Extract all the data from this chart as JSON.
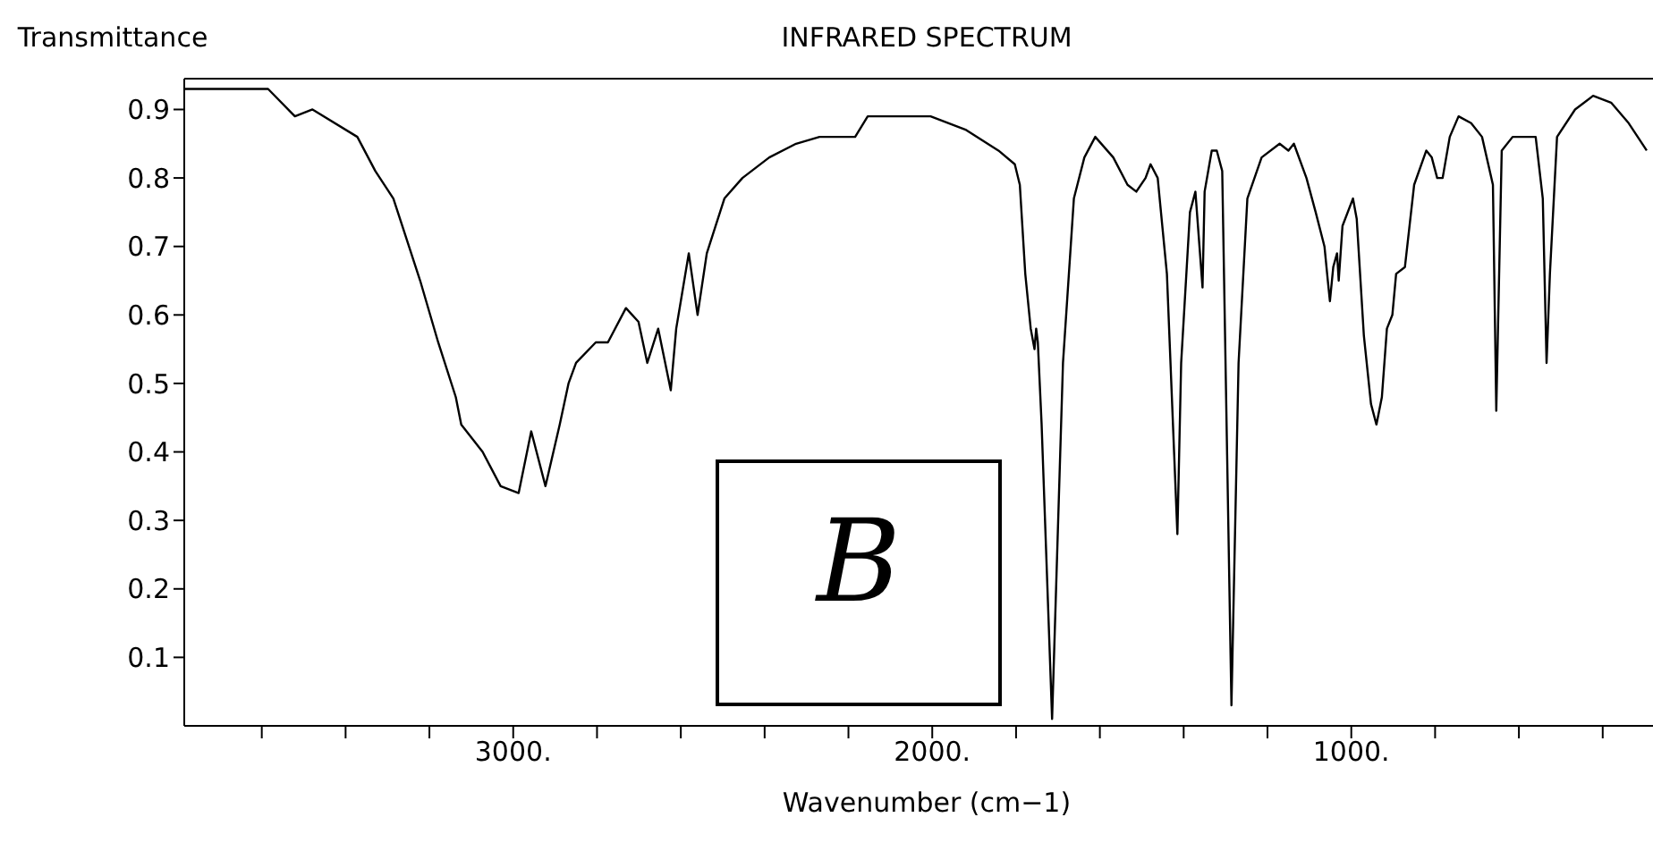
{
  "chart_data": {
    "type": "line",
    "title": "INFRARED SPECTRUM",
    "xlabel": "Wavenumber (cm−1)",
    "ylabel": "Transmittance",
    "annotations": [
      "B"
    ],
    "xlim": [
      3785,
      280
    ],
    "ylim": [
      0,
      0.945
    ],
    "xticks": [
      {
        "value": 3600,
        "label": null
      },
      {
        "value": 3400,
        "label": null
      },
      {
        "value": 3200,
        "label": null
      },
      {
        "value": 3000,
        "label": "3000."
      },
      {
        "value": 2800,
        "label": null
      },
      {
        "value": 2600,
        "label": null
      },
      {
        "value": 2400,
        "label": null
      },
      {
        "value": 2200,
        "label": null
      },
      {
        "value": 2000,
        "label": "2000."
      },
      {
        "value": 1800,
        "label": null
      },
      {
        "value": 1600,
        "label": null
      },
      {
        "value": 1400,
        "label": null
      },
      {
        "value": 1200,
        "label": null
      },
      {
        "value": 1000,
        "label": "1000."
      },
      {
        "value": 800,
        "label": null
      },
      {
        "value": 600,
        "label": null
      },
      {
        "value": 400,
        "label": null
      }
    ],
    "yticks": [
      0.1,
      0.2,
      0.3,
      0.4,
      0.5,
      0.6,
      0.7,
      0.8,
      0.9
    ],
    "series": [
      {
        "color": "#000000",
        "x": [
          3785,
          3585,
          3521,
          3479,
          3372,
          3329,
          3286,
          3222,
          3179,
          3137,
          3124,
          3073,
          3030,
          2987,
          2957,
          2923,
          2889,
          2868,
          2850,
          2803,
          2774,
          2731,
          2701,
          2680,
          2654,
          2624,
          2611,
          2581,
          2560,
          2538,
          2496,
          2453,
          2389,
          2325,
          2269,
          2252,
          2184,
          2154,
          2090,
          2004,
          1919,
          1842,
          1803,
          1791,
          1778,
          1765,
          1756,
          1752,
          1748,
          1739,
          1714,
          1688,
          1662,
          1637,
          1611,
          1568,
          1534,
          1513,
          1491,
          1479,
          1462,
          1440,
          1415,
          1406,
          1385,
          1372,
          1355,
          1350,
          1333,
          1321,
          1308,
          1286,
          1269,
          1248,
          1214,
          1171,
          1150,
          1137,
          1107,
          1085,
          1064,
          1056,
          1051,
          1043,
          1034,
          1030,
          1021,
          996,
          987,
          970,
          953,
          940,
          927,
          915,
          902,
          893,
          872,
          850,
          821,
          808,
          795,
          782,
          765,
          744,
          714,
          688,
          662,
          654,
          641,
          615,
          585,
          560,
          543,
          534,
          526,
          509,
          466,
          423,
          380,
          338,
          295
        ],
        "values": [
          0.93,
          0.93,
          0.89,
          0.9,
          0.86,
          0.81,
          0.77,
          0.65,
          0.56,
          0.48,
          0.44,
          0.4,
          0.35,
          0.34,
          0.43,
          0.35,
          0.44,
          0.5,
          0.53,
          0.56,
          0.56,
          0.61,
          0.59,
          0.53,
          0.58,
          0.49,
          0.58,
          0.69,
          0.6,
          0.69,
          0.77,
          0.8,
          0.83,
          0.85,
          0.86,
          0.86,
          0.86,
          0.89,
          0.89,
          0.89,
          0.87,
          0.84,
          0.82,
          0.79,
          0.66,
          0.58,
          0.55,
          0.58,
          0.56,
          0.44,
          0.01,
          0.53,
          0.77,
          0.83,
          0.86,
          0.83,
          0.79,
          0.78,
          0.8,
          0.82,
          0.8,
          0.66,
          0.28,
          0.53,
          0.75,
          0.78,
          0.64,
          0.78,
          0.84,
          0.84,
          0.81,
          0.03,
          0.53,
          0.77,
          0.83,
          0.85,
          0.84,
          0.85,
          0.8,
          0.75,
          0.7,
          0.65,
          0.62,
          0.67,
          0.69,
          0.65,
          0.73,
          0.77,
          0.74,
          0.57,
          0.47,
          0.44,
          0.48,
          0.58,
          0.6,
          0.66,
          0.67,
          0.79,
          0.84,
          0.83,
          0.8,
          0.8,
          0.86,
          0.89,
          0.88,
          0.86,
          0.79,
          0.46,
          0.84,
          0.86,
          0.86,
          0.86,
          0.77,
          0.53,
          0.66,
          0.86,
          0.9,
          0.92,
          0.91,
          0.88,
          0.84
        ]
      }
    ]
  }
}
